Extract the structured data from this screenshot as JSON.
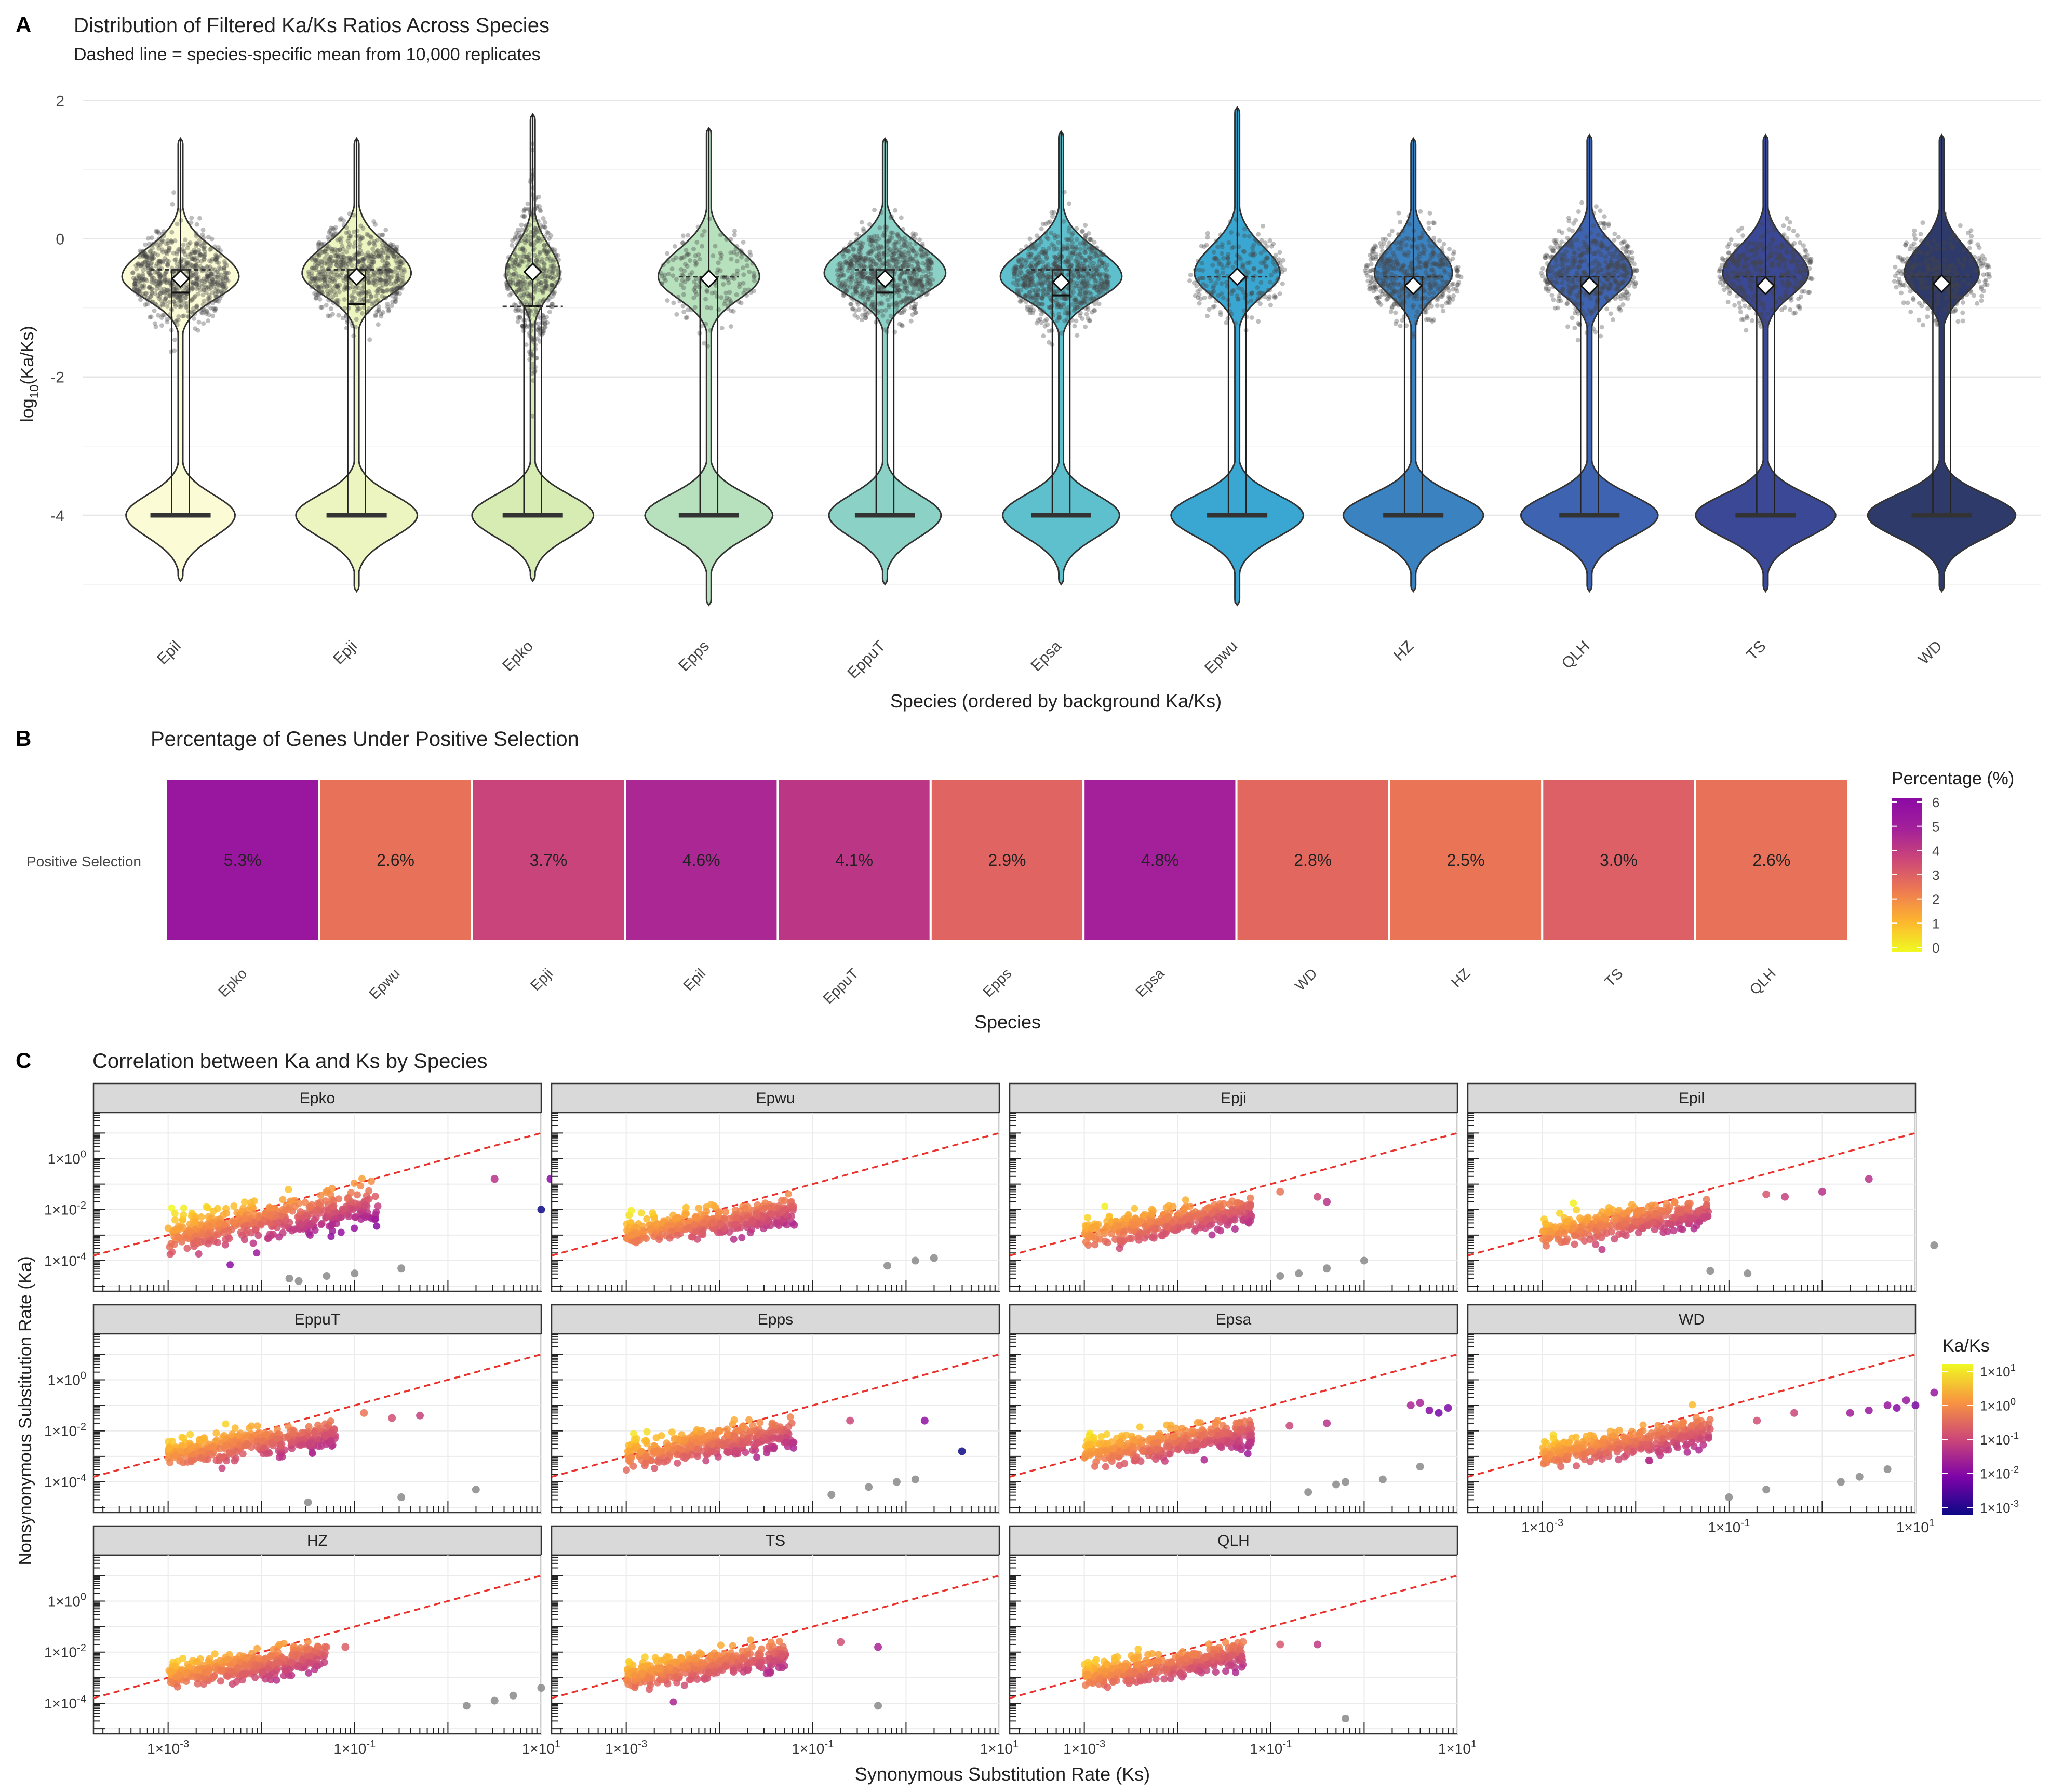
{
  "figure": {
    "panel_labels": [
      "A",
      "B",
      "C"
    ]
  },
  "chart_data": [
    {
      "panel": "A",
      "type": "violin",
      "title": "Distribution of Filtered Ka/Ks Ratios Across Species",
      "subtitle": "Dashed line = species-specific mean from 10,000 replicates",
      "xlabel": "Species (ordered by background Ka/Ks)",
      "ylabel_main": "log",
      "ylabel_sub": "10",
      "ylabel_rest": "(Ka/Ks)",
      "ylim": [
        -5.3,
        2.1
      ],
      "yticks": [
        2,
        0,
        -2,
        -4
      ],
      "ytick_labels": [
        "2",
        "0",
        "-2",
        "-4"
      ],
      "categories": [
        "Epil",
        "Epji",
        "Epko",
        "Epps",
        "EppuT",
        "Epsa",
        "Epwu",
        "HZ",
        "QLH",
        "TS",
        "WD"
      ],
      "colors": [
        "#fbfbd6",
        "#ecf5c0",
        "#d6ecb2",
        "#b7e0bc",
        "#8cd1c5",
        "#5ec0cc",
        "#3aa7d2",
        "#3b82c0",
        "#3e63b0",
        "#3a4896",
        "#2e3a6a"
      ],
      "upper_mode": [
        -0.55,
        -0.5,
        -0.5,
        -0.55,
        -0.5,
        -0.55,
        -0.5,
        -0.5,
        -0.5,
        -0.5,
        -0.5
      ],
      "mean_log": [
        -0.58,
        -0.55,
        -0.48,
        -0.58,
        -0.58,
        -0.63,
        -0.55,
        -0.68,
        -0.68,
        -0.68,
        -0.65
      ],
      "box_q1": [
        -4,
        -4,
        -4,
        -4,
        -4,
        -4,
        -4,
        -4,
        -4,
        -4,
        -4
      ],
      "box_median": [
        -0.78,
        -0.95,
        -0.98,
        -4,
        -0.78,
        -0.82,
        -4,
        -4,
        -4,
        -4,
        -4
      ],
      "box_q3": [
        -0.45,
        -0.45,
        -0.98,
        -0.55,
        -0.45,
        -0.45,
        -0.55,
        -0.55,
        -0.55,
        -0.55,
        -0.55
      ],
      "whisker_top": [
        1.45,
        1.45,
        1.8,
        1.6,
        1.45,
        1.55,
        1.9,
        1.45,
        1.5,
        1.5,
        1.5
      ],
      "whisker_bottom": [
        -4.95,
        -5.1,
        -4.95,
        -5.3,
        -5.0,
        -5.0,
        -5.3,
        -5.1,
        -5.1,
        -5.1,
        -5.1
      ],
      "point_counts": [
        700,
        650,
        450,
        180,
        650,
        700,
        220,
        450,
        450,
        380,
        280
      ]
    },
    {
      "panel": "B",
      "type": "heatmap",
      "title": "Percentage of Genes Under Positive Selection",
      "row_label": "Positive Selection",
      "xlabel": "Species",
      "categories": [
        "Epko",
        "Epwu",
        "Epji",
        "Epil",
        "EppuT",
        "Epps",
        "Epsa",
        "WD",
        "HZ",
        "TS",
        "QLH"
      ],
      "values": [
        5.3,
        2.6,
        3.7,
        4.6,
        4.1,
        2.9,
        4.8,
        2.8,
        2.5,
        3.0,
        2.6
      ],
      "value_labels": [
        "5.3%",
        "2.6%",
        "3.7%",
        "4.6%",
        "4.1%",
        "2.9%",
        "4.8%",
        "2.8%",
        "2.5%",
        "3.0%",
        "2.6%"
      ],
      "legend_title": "Percentage (%)",
      "legend_range": [
        0,
        6
      ],
      "legend_ticks": [
        "6",
        "5",
        "4",
        "3",
        "2",
        "1",
        "0"
      ]
    },
    {
      "panel": "C",
      "type": "scatter",
      "title": "Correlation between Ka and Ks by Species",
      "xlabel": "Synonymous Substitution Rate (Ks)",
      "ylabel": "Nonsynonymous Substitution Rate (Ka)",
      "scale": "log10",
      "xlim_log": [
        -3.8,
        1.0
      ],
      "ylim_log": [
        -5.2,
        1.8
      ],
      "y_tick_labels": [
        {
          "base": "1×10",
          "exp": "0",
          "value": 0
        },
        {
          "base": "1×10",
          "exp": "-2",
          "value": -2
        },
        {
          "base": "1×10",
          "exp": "-4",
          "value": -4
        }
      ],
      "x_tick_labels": [
        {
          "base": "1×10",
          "exp": "-3",
          "value": -3
        },
        {
          "base": "1×10",
          "exp": "-1",
          "value": -1
        },
        {
          "base": "1×10",
          "exp": "1",
          "value": 1
        }
      ],
      "reference_line": "Ka = Ks",
      "facets": [
        "Epko",
        "Epwu",
        "Epji",
        "Epil",
        "EppuT",
        "Epps",
        "Epsa",
        "WD",
        "HZ",
        "TS",
        "QLH"
      ],
      "facets_with_x_axis": [
        "WD",
        "HZ",
        "TS",
        "QLH"
      ],
      "outliers": {
        "Epko": {
          "colored": [
            [
              0.5,
              -0.8
            ],
            [
              1.1,
              -0.8
            ],
            [
              1.0,
              -2.0
            ],
            [
              -1.4,
              -2.0
            ]
          ],
          "grey": [
            [
              -1.6,
              -4.8
            ],
            [
              -1.3,
              -4.6
            ],
            [
              -1.0,
              -4.5
            ],
            [
              -0.5,
              -4.3
            ],
            [
              -1.7,
              -4.7
            ]
          ]
        },
        "Epwu": {
          "colored": [
            [
              -1.7,
              -1.9
            ],
            [
              -1.6,
              -2.2
            ],
            [
              -1.2,
              -2.6
            ]
          ],
          "grey": [
            [
              -0.2,
              -4.2
            ],
            [
              0.1,
              -4.0
            ],
            [
              0.3,
              -3.9
            ]
          ]
        },
        "Epji": {
          "colored": [
            [
              -0.9,
              -1.3
            ],
            [
              -0.5,
              -1.5
            ],
            [
              -0.4,
              -1.7
            ]
          ],
          "grey": [
            [
              -0.9,
              -4.6
            ],
            [
              -0.7,
              -4.5
            ],
            [
              -0.4,
              -4.3
            ],
            [
              0.0,
              -4.0
            ]
          ]
        },
        "Epil": {
          "colored": [
            [
              -0.6,
              -1.4
            ],
            [
              -0.4,
              -1.5
            ],
            [
              0.0,
              -1.3
            ],
            [
              0.5,
              -0.8
            ]
          ],
          "grey": [
            [
              -1.2,
              -4.4
            ],
            [
              -0.8,
              -4.5
            ],
            [
              1.2,
              -3.4
            ]
          ]
        },
        "EppuT": {
          "colored": [
            [
              -0.9,
              -1.3
            ],
            [
              -0.6,
              -1.5
            ],
            [
              -0.3,
              -1.4
            ]
          ],
          "grey": [
            [
              -1.5,
              -4.8
            ],
            [
              -0.5,
              -4.6
            ],
            [
              0.3,
              -4.3
            ]
          ]
        },
        "Epps": {
          "colored": [
            [
              -1.4,
              -1.8
            ],
            [
              -0.6,
              -1.6
            ],
            [
              0.2,
              -1.6
            ],
            [
              0.6,
              -2.8
            ]
          ],
          "grey": [
            [
              -0.8,
              -4.5
            ],
            [
              -0.4,
              -4.2
            ],
            [
              -0.1,
              -4.0
            ],
            [
              0.1,
              -3.9
            ]
          ]
        },
        "Epsa": {
          "colored": [
            [
              -0.8,
              -1.8
            ],
            [
              -0.4,
              -1.7
            ],
            [
              0.5,
              -1.0
            ],
            [
              0.8,
              -1.3
            ],
            [
              0.9,
              -1.1
            ],
            [
              0.7,
              -1.2
            ],
            [
              0.6,
              -0.9
            ]
          ],
          "grey": [
            [
              -0.6,
              -4.4
            ],
            [
              -0.3,
              -4.1
            ],
            [
              0.2,
              -3.9
            ],
            [
              0.6,
              -3.4
            ],
            [
              -0.2,
              -4.0
            ]
          ]
        },
        "WD": {
          "colored": [
            [
              -1.4,
              -1.8
            ],
            [
              -0.7,
              -1.6
            ],
            [
              -0.3,
              -1.3
            ],
            [
              0.5,
              -1.2
            ],
            [
              0.7,
              -1.0
            ],
            [
              0.9,
              -0.8
            ],
            [
              0.8,
              -1.1
            ],
            [
              1.0,
              -1.0
            ],
            [
              1.2,
              -0.5
            ],
            [
              0.3,
              -1.3
            ]
          ],
          "grey": [
            [
              -1.0,
              -4.6
            ],
            [
              -0.6,
              -4.3
            ],
            [
              0.2,
              -4.0
            ],
            [
              0.4,
              -3.8
            ],
            [
              0.7,
              -3.5
            ]
          ]
        },
        "HZ": {
          "colored": [
            [
              -1.5,
              -1.9
            ],
            [
              -1.1,
              -1.8
            ]
          ],
          "grey": [
            [
              0.2,
              -4.1
            ],
            [
              0.5,
              -3.9
            ],
            [
              0.7,
              -3.7
            ],
            [
              1.0,
              -3.4
            ]
          ]
        },
        "TS": {
          "colored": [
            [
              -0.7,
              -1.6
            ],
            [
              -0.3,
              -1.8
            ]
          ],
          "grey": [
            [
              -0.3,
              -4.1
            ]
          ]
        },
        "QLH": {
          "colored": [
            [
              -1.3,
              -1.6
            ],
            [
              -0.9,
              -1.7
            ],
            [
              -0.5,
              -1.7
            ]
          ],
          "grey": [
            [
              -0.2,
              -4.6
            ]
          ]
        }
      },
      "legend_title": "Ka/Ks",
      "legend_ticks": [
        {
          "base": "1×10",
          "exp": "1",
          "value": 1
        },
        {
          "base": "1×10",
          "exp": "0",
          "value": 0
        },
        {
          "base": "1×10",
          "exp": "-1",
          "value": -1
        },
        {
          "base": "1×10",
          "exp": "-2",
          "value": -2
        },
        {
          "base": "1×10",
          "exp": "-3",
          "value": -3
        }
      ]
    }
  ]
}
